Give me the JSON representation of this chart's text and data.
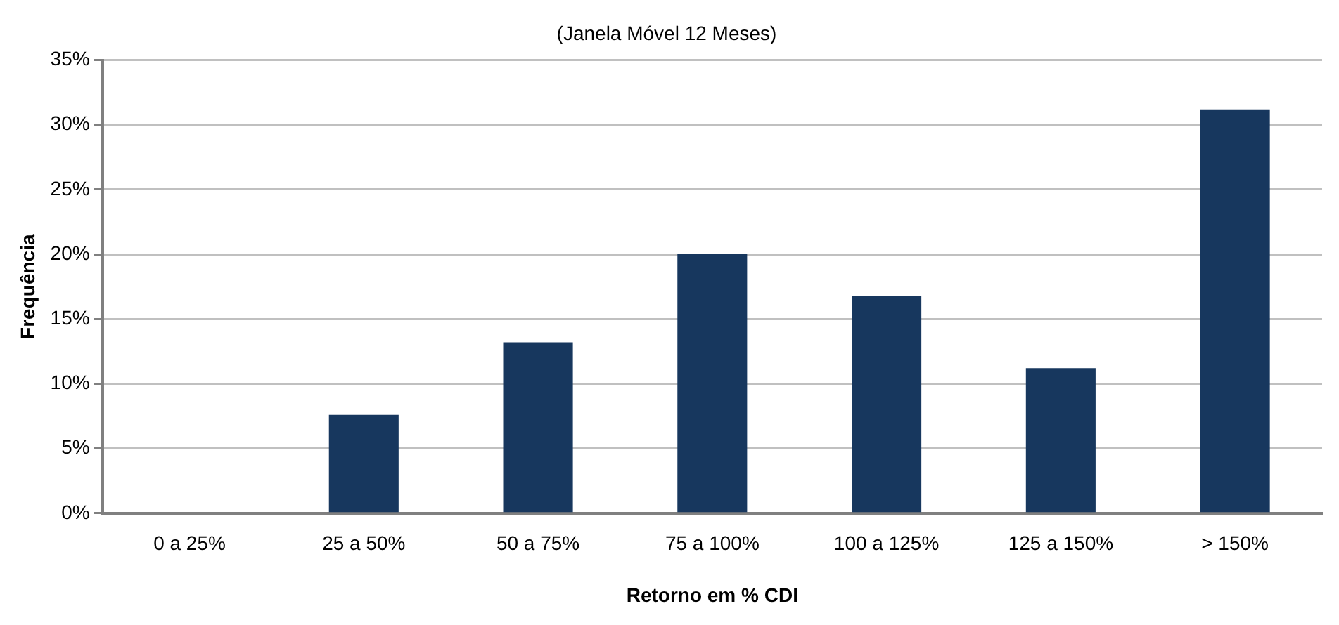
{
  "chart_data": {
    "type": "bar",
    "subtitle": "(Janela Móvel 12 Meses)",
    "xlabel": "Retorno em % CDI",
    "ylabel": "Frequência",
    "categories": [
      "0 a 25%",
      "25 a 50%",
      "50 a 75%",
      "75 a 100%",
      "100 a 125%",
      "125 a 150%",
      "> 150%"
    ],
    "values": [
      0,
      7.6,
      13.2,
      20.0,
      16.8,
      11.2,
      31.2
    ],
    "color": "#17375e",
    "ylim": [
      0,
      35
    ],
    "yticks": [
      {
        "value": 0,
        "label": "0%"
      },
      {
        "value": 5,
        "label": "5%"
      },
      {
        "value": 10,
        "label": "10%"
      },
      {
        "value": 15,
        "label": "15%"
      },
      {
        "value": 20,
        "label": "20%"
      },
      {
        "value": 25,
        "label": "25%"
      },
      {
        "value": 30,
        "label": "30%"
      },
      {
        "value": 35,
        "label": "35%"
      }
    ],
    "grid": "y",
    "legend": false
  }
}
